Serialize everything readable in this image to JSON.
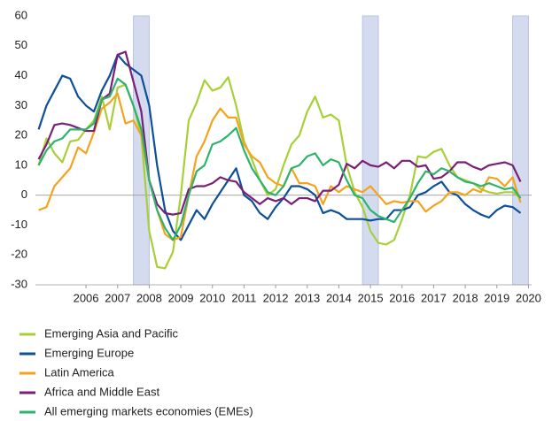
{
  "chart_data": {
    "type": "line",
    "x": [
      2005,
      2005.25,
      2005.5,
      2005.75,
      2006,
      2006.25,
      2006.5,
      2006.75,
      2007,
      2007.25,
      2007.5,
      2007.75,
      2008,
      2008.25,
      2008.5,
      2008.75,
      2009,
      2009.25,
      2009.5,
      2009.75,
      2010,
      2010.25,
      2010.5,
      2010.75,
      2011,
      2011.25,
      2011.5,
      2011.75,
      2012,
      2012.25,
      2012.5,
      2012.75,
      2013,
      2013.25,
      2013.5,
      2013.75,
      2014,
      2014.25,
      2014.5,
      2014.75,
      2015,
      2015.25,
      2015.5,
      2015.75,
      2016,
      2016.25,
      2016.5,
      2016.75,
      2017,
      2017.25,
      2017.5,
      2017.75,
      2018,
      2018.25,
      2018.5,
      2018.75,
      2019,
      2019.25,
      2019.5,
      2019.75,
      2020,
      2020.25
    ],
    "series": [
      {
        "name": "Emerging Asia and Pacific",
        "color": "#a8cf38",
        "values": [
          10,
          19,
          14,
          11,
          18,
          18.5,
          22,
          25,
          33,
          22,
          36,
          37,
          30,
          20,
          -12,
          -24,
          -24.5,
          -19,
          0,
          25,
          31,
          38.5,
          35,
          36,
          39.5,
          30,
          18,
          12,
          5,
          0,
          2,
          10,
          17,
          20,
          28,
          33,
          26,
          27,
          25,
          10,
          1,
          -4,
          -12,
          -16,
          -16.5,
          -15,
          -8,
          0,
          13,
          12.5,
          14.5,
          15.5,
          10,
          6,
          5,
          4,
          2,
          1,
          0.5,
          1,
          1,
          -1
        ]
      },
      {
        "name": "Emerging Europe",
        "color": "#0d4f9a",
        "values": [
          22,
          30,
          35,
          40,
          39,
          33,
          30,
          28,
          35,
          40,
          47,
          44,
          42,
          40,
          30,
          10,
          -5,
          -12,
          -15,
          -10,
          -5,
          -8,
          -3,
          1,
          5,
          9,
          0,
          -2,
          -6,
          -8,
          -4,
          -1,
          3,
          3,
          2,
          0,
          -6,
          -5,
          -6,
          -8,
          -8,
          -8,
          -8.5,
          -8,
          -8,
          -5,
          -5,
          -4,
          0,
          1,
          3,
          4.5,
          1,
          0,
          -3,
          -5,
          -6.5,
          -7.5,
          -5,
          -3.5,
          -4,
          -6
        ]
      },
      {
        "name": "Latin America",
        "color": "#f5a21c",
        "values": [
          -5,
          -4,
          3,
          6,
          9,
          16,
          14,
          21,
          29,
          31,
          34,
          24,
          25,
          20,
          5,
          -5,
          -13,
          -15,
          -14,
          0,
          13,
          18,
          25,
          29,
          26,
          26,
          17,
          13,
          11,
          6,
          4,
          3,
          9,
          4,
          4,
          3,
          -3,
          3,
          1,
          3,
          2,
          1,
          3,
          0,
          -3,
          -2,
          -2.5,
          -2,
          -2,
          -5.5,
          -3.5,
          -2,
          1,
          1,
          0,
          2,
          1,
          6,
          5.5,
          3,
          6,
          -2.5
        ]
      },
      {
        "name": "Africa and Middle East",
        "color": "#7a1f78",
        "values": [
          12,
          17,
          23.5,
          24,
          23.5,
          22.5,
          21.5,
          21.5,
          32,
          34,
          47,
          48,
          38,
          28,
          5,
          -3,
          -6,
          -6.5,
          -6,
          2,
          3,
          3,
          4,
          6,
          5,
          4.5,
          1,
          -1,
          -3,
          -1,
          -2,
          -1,
          -3,
          -1,
          -1,
          -2,
          1.5,
          1.5,
          3.5,
          10.5,
          9,
          11.5,
          10,
          9.5,
          11,
          9,
          11.5,
          11.5,
          9.5,
          10,
          5.5,
          6,
          8,
          11,
          11,
          9.5,
          8.5,
          10,
          10.5,
          11,
          10,
          4.5
        ]
      },
      {
        "name": "All emerging markets economies (EMEs)",
        "color": "#2db36b",
        "values": [
          10,
          15,
          18,
          19,
          22,
          22,
          22,
          24,
          32,
          33,
          39,
          37,
          30,
          22,
          5,
          -5,
          -11,
          -15,
          -10,
          0,
          8,
          10,
          17,
          18,
          20,
          22.5,
          15,
          9,
          5,
          1,
          0,
          3,
          9,
          10,
          13,
          14,
          10,
          12,
          11,
          5,
          0,
          -1,
          -5,
          -7,
          -8,
          -9,
          -5,
          -1,
          4,
          8,
          7,
          9,
          8,
          6,
          4.5,
          4,
          3,
          4,
          3,
          2,
          2.5,
          -1
        ]
      }
    ],
    "shaded_periods": [
      [
        2008,
        2008.5
      ],
      [
        2015.25,
        2015.75
      ],
      [
        2020,
        2020.5
      ]
    ],
    "xlim": [
      2004.9,
      2020.6
    ],
    "xticks": [
      {
        "value": 2006.5,
        "label": "2006"
      },
      {
        "value": 2007.5,
        "label": "2007"
      },
      {
        "value": 2008.5,
        "label": "2008"
      },
      {
        "value": 2009.5,
        "label": "2009"
      },
      {
        "value": 2010.5,
        "label": "2010"
      },
      {
        "value": 2011.5,
        "label": "2011"
      },
      {
        "value": 2012.5,
        "label": "2012"
      },
      {
        "value": 2013.5,
        "label": "2013"
      },
      {
        "value": 2014.5,
        "label": "2014"
      },
      {
        "value": 2015.5,
        "label": "2015"
      },
      {
        "value": 2016.5,
        "label": "2016"
      },
      {
        "value": 2017.5,
        "label": "2017"
      },
      {
        "value": 2018.5,
        "label": "2018"
      },
      {
        "value": 2019.5,
        "label": "2019"
      },
      {
        "value": 2020.5,
        "label": "2020"
      }
    ],
    "ylim": [
      -30,
      60
    ],
    "yticks": [
      -30,
      -20,
      -10,
      0,
      10,
      20,
      30,
      40,
      50,
      60
    ]
  }
}
